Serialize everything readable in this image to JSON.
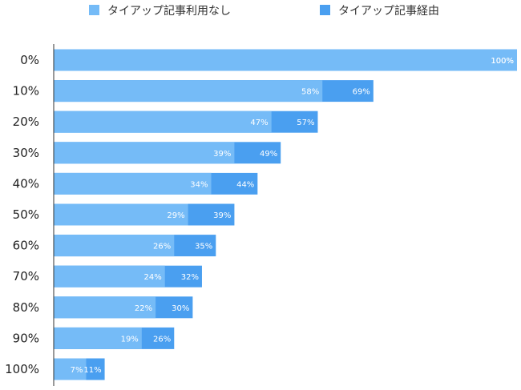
{
  "chart_data": {
    "type": "bar",
    "orientation": "horizontal",
    "layout": "overlay",
    "title": "",
    "xlabel": "",
    "ylabel": "",
    "categories": [
      "0%",
      "10%",
      "20%",
      "30%",
      "40%",
      "50%",
      "60%",
      "70%",
      "80%",
      "90%",
      "100%"
    ],
    "xlim": [
      0,
      100
    ],
    "grid": false,
    "legend_position": "top",
    "series": [
      {
        "name": "タイアップ記事経由",
        "color": "#4a9ff0",
        "values": [
          100,
          69,
          57,
          49,
          44,
          39,
          35,
          32,
          30,
          26,
          11
        ],
        "labels": [
          "100%",
          "69%",
          "57%",
          "49%",
          "44%",
          "39%",
          "35%",
          "32%",
          "30%",
          "26%",
          "11%"
        ]
      },
      {
        "name": "タイアップ記事利用なし",
        "color": "#75bbf7",
        "values": [
          100,
          58,
          47,
          39,
          34,
          29,
          26,
          24,
          22,
          19,
          7
        ],
        "labels": [
          "100%",
          "58%",
          "47%",
          "39%",
          "34%",
          "29%",
          "26%",
          "24%",
          "22%",
          "19%",
          "7%"
        ]
      }
    ]
  }
}
